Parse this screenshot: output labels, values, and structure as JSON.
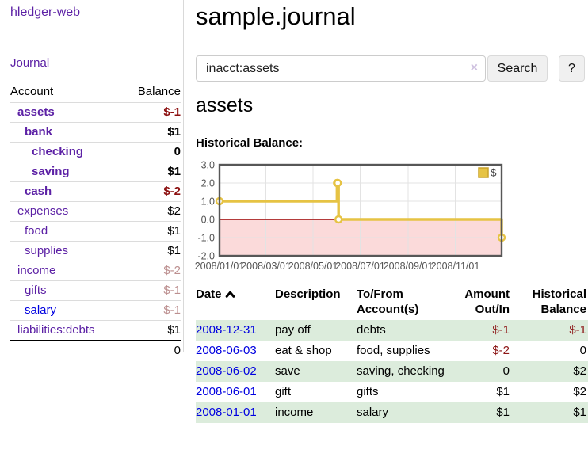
{
  "app": {
    "brand": "hledger-web"
  },
  "sidebar": {
    "journal_label": "Journal",
    "accounts_table": {
      "headers": [
        "Account",
        "Balance"
      ],
      "rows": [
        {
          "name": "assets",
          "depth": 1,
          "balance": "$-1",
          "bold": true,
          "neg": "strong"
        },
        {
          "name": "bank",
          "depth": 2,
          "balance": "$1",
          "bold": true
        },
        {
          "name": "checking",
          "depth": 3,
          "balance": "0",
          "bold": true
        },
        {
          "name": "saving",
          "depth": 3,
          "balance": "$1",
          "bold": true
        },
        {
          "name": "cash",
          "depth": 2,
          "balance": "$-2",
          "bold": true,
          "neg": "strong"
        },
        {
          "name": "expenses",
          "depth": 1,
          "balance": "$2"
        },
        {
          "name": "food",
          "depth": 2,
          "balance": "$1"
        },
        {
          "name": "supplies",
          "depth": 2,
          "balance": "$1"
        },
        {
          "name": "income",
          "depth": 1,
          "balance": "$-2",
          "neg": "soft"
        },
        {
          "name": "gifts",
          "depth": 2,
          "balance": "$-1",
          "neg": "soft"
        },
        {
          "name": "salary",
          "depth": 2,
          "balance": "$-1",
          "neg": "soft",
          "blue": true
        },
        {
          "name": "liabilities:debts",
          "depth": 1,
          "balance": "$1"
        }
      ],
      "total": "0"
    }
  },
  "header": {
    "title": "sample.journal"
  },
  "search": {
    "value": "inacct:assets",
    "clear_icon": "×",
    "button_label": "Search",
    "help_label": "?"
  },
  "account_page": {
    "heading": "assets",
    "chart_label": "Historical Balance:"
  },
  "chart_data": {
    "type": "line",
    "title": "Historical Balance:",
    "steps": true,
    "grid": true,
    "x_range": [
      "2008-01-01",
      "2008-12-31"
    ],
    "ylim": [
      -2,
      3
    ],
    "series": [
      {
        "name": "$",
        "color": "#e6c344",
        "points": [
          {
            "x": "2008-01-01",
            "y": 1
          },
          {
            "x": "2008-06-01",
            "y": 2
          },
          {
            "x": "2008-06-02",
            "y": 2
          },
          {
            "x": "2008-06-03",
            "y": 0
          },
          {
            "x": "2008-12-31",
            "y": -1
          }
        ]
      }
    ],
    "y_ticks": [
      {
        "v": 3,
        "label": "3.0"
      },
      {
        "v": 2,
        "label": "2.0"
      },
      {
        "v": 1,
        "label": "1.0"
      },
      {
        "v": 0,
        "label": "0.0"
      },
      {
        "v": -1,
        "label": "-1.0"
      },
      {
        "v": -2,
        "label": "-2.0"
      }
    ],
    "x_ticks": [
      {
        "date": "2008-01-01",
        "label": "2008/01/01"
      },
      {
        "date": "2008-03-01",
        "label": "2008/03/01"
      },
      {
        "date": "2008-05-01",
        "label": "2008/05/01"
      },
      {
        "date": "2008-07-01",
        "label": "2008/07/01"
      },
      {
        "date": "2008-09-01",
        "label": "2008/09/01"
      },
      {
        "date": "2008-11-01",
        "label": "2008/11/01"
      }
    ],
    "legend": {
      "position": "top-right",
      "label": "$"
    },
    "colors": {
      "negative_region_fill": "#fbdada",
      "zero_line": "#9c0606",
      "gridline": "#e3e3e3",
      "plot_border": "#575757",
      "tick_text": "#545454",
      "legend_swatch_border": "#c9a22a"
    }
  },
  "register": {
    "columns": [
      "Date",
      "Description",
      "To/From Account(s)",
      "Amount Out/In",
      "Historical Balance"
    ],
    "rows": [
      {
        "date": "2008-12-31",
        "description": "pay off",
        "accounts": "debts",
        "amount": "$-1",
        "amount_neg": true,
        "balance": "$-1",
        "balance_neg": true
      },
      {
        "date": "2008-06-03",
        "description": "eat & shop",
        "accounts": "food, supplies",
        "amount": "$-2",
        "amount_neg": true,
        "balance": "0",
        "balance_neg": false
      },
      {
        "date": "2008-06-02",
        "description": "save",
        "accounts": "saving, checking",
        "amount": "0",
        "amount_neg": false,
        "balance": "$2",
        "balance_neg": false
      },
      {
        "date": "2008-06-01",
        "description": "gift",
        "accounts": "gifts",
        "amount": "$1",
        "amount_neg": false,
        "balance": "$2",
        "balance_neg": false
      },
      {
        "date": "2008-01-01",
        "description": "income",
        "accounts": "salary",
        "amount": "$1",
        "amount_neg": false,
        "balance": "$1",
        "balance_neg": false
      }
    ]
  }
}
